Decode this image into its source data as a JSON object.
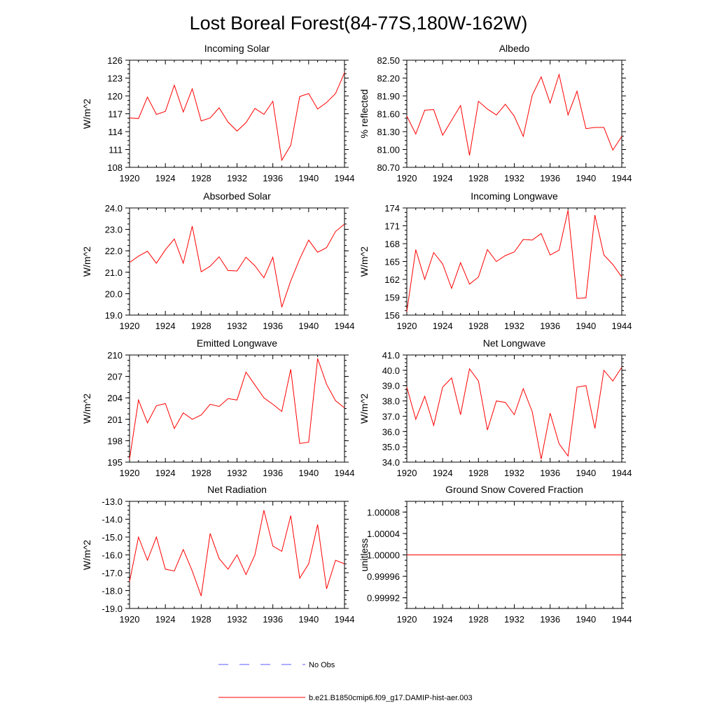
{
  "title": "Lost Boreal Forest(84-77S,180W-162W)",
  "legend": [
    {
      "label": "No Obs",
      "color": "#5a5aff",
      "style": "dashed"
    },
    {
      "label": "b.e21.B1850cmip6.f09_g17.DAMIP-hist-aer.003",
      "color": "#ff0000",
      "style": "solid"
    }
  ],
  "chart_data": [
    {
      "type": "line",
      "title": "Incoming Solar",
      "ylabel": "W/m^2",
      "xlabel": "",
      "xlim": [
        1920,
        1944
      ],
      "ylim": [
        108,
        126
      ],
      "xticks": [
        "1920",
        "1924",
        "1928",
        "1932",
        "1936",
        "1940",
        "1944"
      ],
      "yticks": [
        "108",
        "111",
        "114",
        "117",
        "120",
        "123",
        "126"
      ],
      "x": [
        1920,
        1921,
        1922,
        1923,
        1924,
        1925,
        1926,
        1927,
        1928,
        1929,
        1930,
        1931,
        1932,
        1933,
        1934,
        1935,
        1936,
        1937,
        1938,
        1939,
        1940,
        1941,
        1942,
        1943,
        1944
      ],
      "series": [
        {
          "name": "b.e21.B1850cmip6.f09_g17.DAMIP-hist-aer.003",
          "color": "#ff0000",
          "values": [
            116.3,
            116.2,
            119.8,
            116.9,
            117.4,
            121.8,
            117.3,
            121.2,
            115.8,
            116.3,
            118.0,
            115.6,
            114.1,
            115.5,
            117.9,
            116.9,
            119.1,
            109.2,
            111.7,
            119.9,
            120.4,
            117.8,
            118.9,
            120.4,
            123.9
          ]
        }
      ]
    },
    {
      "type": "line",
      "title": "Albedo",
      "ylabel": "% reflected",
      "xlabel": "",
      "xlim": [
        1920,
        1944
      ],
      "ylim": [
        80.7,
        82.5
      ],
      "xticks": [
        "1920",
        "1924",
        "1928",
        "1932",
        "1936",
        "1940",
        "1944"
      ],
      "yticks": [
        "80.70",
        "81.00",
        "81.30",
        "81.60",
        "81.90",
        "82.20",
        "82.50"
      ],
      "x": [
        1920,
        1921,
        1922,
        1923,
        1924,
        1925,
        1926,
        1927,
        1928,
        1929,
        1930,
        1931,
        1932,
        1933,
        1934,
        1935,
        1936,
        1937,
        1938,
        1939,
        1940,
        1941,
        1942,
        1943,
        1944
      ],
      "series": [
        {
          "name": "b.e21.B1850cmip6.f09_g17.DAMIP-hist-aer.003",
          "color": "#ff0000",
          "values": [
            81.56,
            81.26,
            81.66,
            81.67,
            81.24,
            81.49,
            81.74,
            80.9,
            81.81,
            81.68,
            81.58,
            81.76,
            81.56,
            81.22,
            81.91,
            82.22,
            81.78,
            82.26,
            81.58,
            81.98,
            81.35,
            81.37,
            81.37,
            80.99,
            81.22
          ]
        }
      ]
    },
    {
      "type": "line",
      "title": "Absorbed Solar",
      "ylabel": "W/m^2",
      "xlabel": "",
      "xlim": [
        1920,
        1944
      ],
      "ylim": [
        19.0,
        24.0
      ],
      "xticks": [
        "1920",
        "1924",
        "1928",
        "1932",
        "1936",
        "1940",
        "1944"
      ],
      "yticks": [
        "19.0",
        "20.0",
        "21.0",
        "22.0",
        "23.0",
        "24.0"
      ],
      "x": [
        1920,
        1921,
        1922,
        1923,
        1924,
        1925,
        1926,
        1927,
        1928,
        1929,
        1930,
        1931,
        1932,
        1933,
        1934,
        1935,
        1936,
        1937,
        1938,
        1939,
        1940,
        1941,
        1942,
        1943,
        1944
      ],
      "series": [
        {
          "name": "b.e21.B1850cmip6.f09_g17.DAMIP-hist-aer.003",
          "color": "#ff0000",
          "values": [
            21.45,
            21.75,
            21.98,
            21.42,
            22.05,
            22.55,
            21.42,
            23.15,
            21.02,
            21.28,
            21.72,
            21.08,
            21.06,
            21.7,
            21.3,
            20.74,
            21.7,
            19.37,
            20.6,
            21.62,
            22.5,
            21.93,
            22.15,
            22.9,
            23.25
          ]
        }
      ]
    },
    {
      "type": "line",
      "title": "Incoming Longwave",
      "ylabel": "W/m^2",
      "xlabel": "",
      "xlim": [
        1920,
        1944
      ],
      "ylim": [
        156,
        174
      ],
      "xticks": [
        "1920",
        "1924",
        "1928",
        "1932",
        "1936",
        "1940",
        "1944"
      ],
      "yticks": [
        "156",
        "159",
        "162",
        "165",
        "168",
        "171",
        "174"
      ],
      "x": [
        1920,
        1921,
        1922,
        1923,
        1924,
        1925,
        1926,
        1927,
        1928,
        1929,
        1930,
        1931,
        1932,
        1933,
        1934,
        1935,
        1936,
        1937,
        1938,
        1939,
        1940,
        1941,
        1942,
        1943,
        1944
      ],
      "series": [
        {
          "name": "b.e21.B1850cmip6.f09_g17.DAMIP-hist-aer.003",
          "color": "#ff0000",
          "values": [
            156.6,
            167.0,
            162.0,
            166.5,
            164.6,
            160.5,
            164.8,
            161.2,
            162.4,
            167.0,
            165.0,
            166.0,
            166.6,
            168.7,
            168.6,
            169.7,
            166.1,
            166.9,
            173.6,
            158.8,
            158.9,
            172.8,
            166.1,
            164.5,
            162.4
          ]
        }
      ]
    },
    {
      "type": "line",
      "title": "Emitted Longwave",
      "ylabel": "W/m^2",
      "xlabel": "",
      "xlim": [
        1920,
        1944
      ],
      "ylim": [
        195,
        210
      ],
      "xticks": [
        "1920",
        "1924",
        "1928",
        "1932",
        "1936",
        "1940",
        "1944"
      ],
      "yticks": [
        "195",
        "198",
        "201",
        "204",
        "207",
        "210"
      ],
      "x": [
        1920,
        1921,
        1922,
        1923,
        1924,
        1925,
        1926,
        1927,
        1928,
        1929,
        1930,
        1931,
        1932,
        1933,
        1934,
        1935,
        1936,
        1937,
        1938,
        1939,
        1940,
        1941,
        1942,
        1943,
        1944
      ],
      "series": [
        {
          "name": "b.e21.B1850cmip6.f09_g17.DAMIP-hist-aer.003",
          "color": "#ff0000",
          "values": [
            195.4,
            203.7,
            200.5,
            202.9,
            203.2,
            199.7,
            201.9,
            201.0,
            201.6,
            203.1,
            202.8,
            203.9,
            203.7,
            207.6,
            205.8,
            204.0,
            203.1,
            202.1,
            208.0,
            197.6,
            197.8,
            209.5,
            205.9,
            203.6,
            202.6
          ]
        }
      ]
    },
    {
      "type": "line",
      "title": "Net Longwave",
      "ylabel": "W/m^2",
      "xlabel": "",
      "xlim": [
        1920,
        1944
      ],
      "ylim": [
        34.0,
        41.0
      ],
      "xticks": [
        "1920",
        "1924",
        "1928",
        "1932",
        "1936",
        "1940",
        "1944"
      ],
      "yticks": [
        "34.0",
        "35.0",
        "36.0",
        "37.0",
        "38.0",
        "39.0",
        "40.0",
        "41.0"
      ],
      "x": [
        1920,
        1921,
        1922,
        1923,
        1924,
        1925,
        1926,
        1927,
        1928,
        1929,
        1930,
        1931,
        1932,
        1933,
        1934,
        1935,
        1936,
        1937,
        1938,
        1939,
        1940,
        1941,
        1942,
        1943,
        1944
      ],
      "series": [
        {
          "name": "b.e21.B1850cmip6.f09_g17.DAMIP-hist-aer.003",
          "color": "#ff0000",
          "values": [
            38.9,
            36.8,
            38.3,
            36.4,
            38.9,
            39.5,
            37.1,
            40.1,
            39.3,
            36.1,
            38.0,
            37.9,
            37.1,
            38.8,
            37.3,
            34.2,
            37.2,
            35.2,
            34.4,
            38.9,
            39.0,
            36.2,
            40.0,
            39.3,
            40.2
          ]
        }
      ]
    },
    {
      "type": "line",
      "title": "Net Radiation",
      "ylabel": "W/m^2",
      "xlabel": "",
      "xlim": [
        1920,
        1944
      ],
      "ylim": [
        -19.0,
        -13.0
      ],
      "xticks": [
        "1920",
        "1924",
        "1928",
        "1932",
        "1936",
        "1940",
        "1944"
      ],
      "yticks": [
        "-19.0",
        "-18.0",
        "-17.0",
        "-16.0",
        "-15.0",
        "-14.0",
        "-13.0"
      ],
      "x": [
        1920,
        1921,
        1922,
        1923,
        1924,
        1925,
        1926,
        1927,
        1928,
        1929,
        1930,
        1931,
        1932,
        1933,
        1934,
        1935,
        1936,
        1937,
        1938,
        1939,
        1940,
        1941,
        1942,
        1943,
        1944
      ],
      "series": [
        {
          "name": "b.e21.B1850cmip6.f09_g17.DAMIP-hist-aer.003",
          "color": "#ff0000",
          "values": [
            -17.5,
            -15.0,
            -16.3,
            -15.0,
            -16.8,
            -16.9,
            -15.7,
            -16.9,
            -18.3,
            -14.8,
            -16.2,
            -16.8,
            -16.0,
            -17.1,
            -16.0,
            -13.5,
            -15.5,
            -15.8,
            -13.8,
            -17.3,
            -16.5,
            -14.3,
            -17.9,
            -16.3,
            -16.5
          ]
        }
      ]
    },
    {
      "type": "line",
      "title": "Ground Snow Covered Fraction",
      "ylabel": "unitless",
      "xlabel": "",
      "xlim": [
        1920,
        1944
      ],
      "ylim": [
        0.9999,
        1.0001
      ],
      "xticks": [
        "1920",
        "1924",
        "1928",
        "1932",
        "1936",
        "1940",
        "1944"
      ],
      "yticks": [
        "0.99992",
        "0.99996",
        "1.00000",
        "1.00004",
        "1.00008"
      ],
      "x": [
        1920,
        1921,
        1922,
        1923,
        1924,
        1925,
        1926,
        1927,
        1928,
        1929,
        1930,
        1931,
        1932,
        1933,
        1934,
        1935,
        1936,
        1937,
        1938,
        1939,
        1940,
        1941,
        1942,
        1943,
        1944
      ],
      "series": [
        {
          "name": "b.e21.B1850cmip6.f09_g17.DAMIP-hist-aer.003",
          "color": "#ff0000",
          "values": [
            1,
            1,
            1,
            1,
            1,
            1,
            1,
            1,
            1,
            1,
            1,
            1,
            1,
            1,
            1,
            1,
            1,
            1,
            1,
            1,
            1,
            1,
            1,
            1,
            1
          ]
        }
      ]
    }
  ]
}
